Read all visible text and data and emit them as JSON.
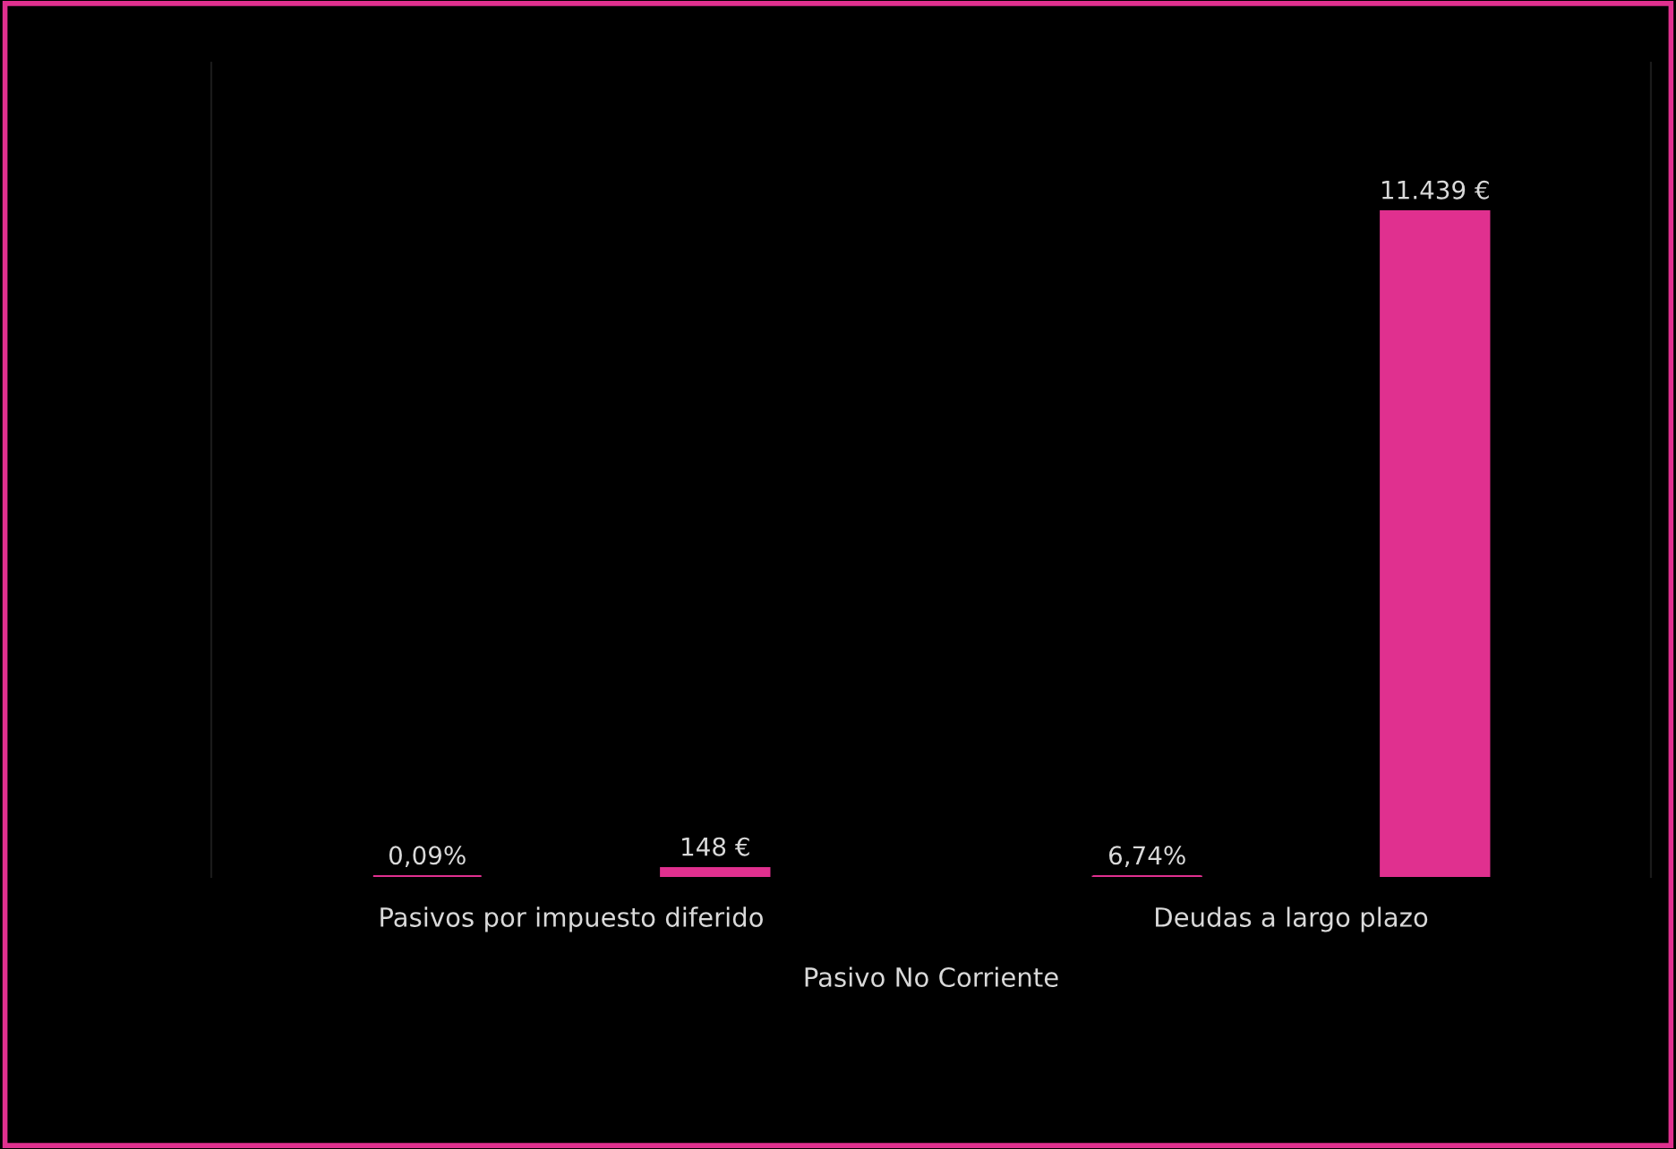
{
  "chart_data": {
    "type": "bar",
    "xlabel": "Pasivo No Corriente",
    "categories": [
      "Pasivos por impuesto diferido",
      "Deudas a largo plazo"
    ],
    "series": [
      {
        "color": "#e0308f",
        "values": [
          0.0009,
          0.0674
        ],
        "value_labels": [
          "0,09%",
          "6,74%"
        ]
      },
      {
        "color": "#e0308f",
        "values": [
          148,
          11439
        ],
        "value_labels": [
          "148 €",
          "11.439 €"
        ]
      }
    ],
    "ylim": [
      0,
      14000
    ],
    "grid": false,
    "legend": false
  }
}
